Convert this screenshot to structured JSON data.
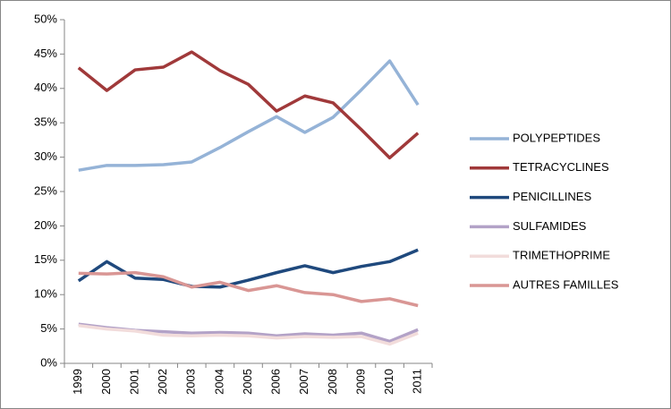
{
  "chart_data": {
    "type": "line",
    "categories": [
      "1999",
      "2000",
      "2001",
      "2002",
      "2003",
      "2004",
      "2005",
      "2006",
      "2007",
      "2008",
      "2009",
      "2010",
      "2011"
    ],
    "series": [
      {
        "name": "POLYPEPTIDES",
        "color": "#95b3d7",
        "values": [
          28.1,
          28.8,
          28.8,
          28.9,
          29.3,
          31.4,
          33.7,
          35.9,
          33.6,
          35.8,
          39.8,
          44.0,
          37.6
        ]
      },
      {
        "name": "TETRACYCLINES",
        "color": "#a0393a",
        "values": [
          43.0,
          39.7,
          42.7,
          43.1,
          45.3,
          42.6,
          40.6,
          36.7,
          38.9,
          37.9,
          34.0,
          29.9,
          33.5
        ]
      },
      {
        "name": "PENICILLINES",
        "color": "#1f497d",
        "values": [
          12.0,
          14.8,
          12.4,
          12.2,
          11.2,
          11.1,
          12.1,
          13.2,
          14.2,
          13.2,
          14.1,
          14.8,
          16.5
        ]
      },
      {
        "name": "SULFAMIDES",
        "color": "#b3a2c7",
        "values": [
          5.7,
          5.2,
          4.8,
          4.6,
          4.4,
          4.5,
          4.4,
          4.0,
          4.3,
          4.1,
          4.4,
          3.2,
          4.9
        ]
      },
      {
        "name": "TRIMETHOPRIME",
        "color": "#f2dcdb",
        "values": [
          5.5,
          5.0,
          4.7,
          4.1,
          4.0,
          4.1,
          4.0,
          3.7,
          3.9,
          3.8,
          3.9,
          2.8,
          4.4
        ]
      },
      {
        "name": "AUTRES FAMILLES",
        "color": "#d99694",
        "values": [
          13.1,
          13.0,
          13.2,
          12.6,
          11.1,
          11.8,
          10.6,
          11.3,
          10.3,
          10.0,
          9.0,
          9.4,
          8.4
        ]
      }
    ],
    "ylim": [
      0,
      50
    ],
    "yticks": [
      {
        "value": 0,
        "label": "0%"
      },
      {
        "value": 5,
        "label": "5%"
      },
      {
        "value": 10,
        "label": "10%"
      },
      {
        "value": 15,
        "label": "15%"
      },
      {
        "value": 20,
        "label": "20%"
      },
      {
        "value": 25,
        "label": "25%"
      },
      {
        "value": 30,
        "label": "30%"
      },
      {
        "value": 35,
        "label": "35%"
      },
      {
        "value": 40,
        "label": "40%"
      },
      {
        "value": 45,
        "label": "45%"
      },
      {
        "value": 50,
        "label": "50%"
      }
    ],
    "grid": false,
    "legend": "right"
  }
}
